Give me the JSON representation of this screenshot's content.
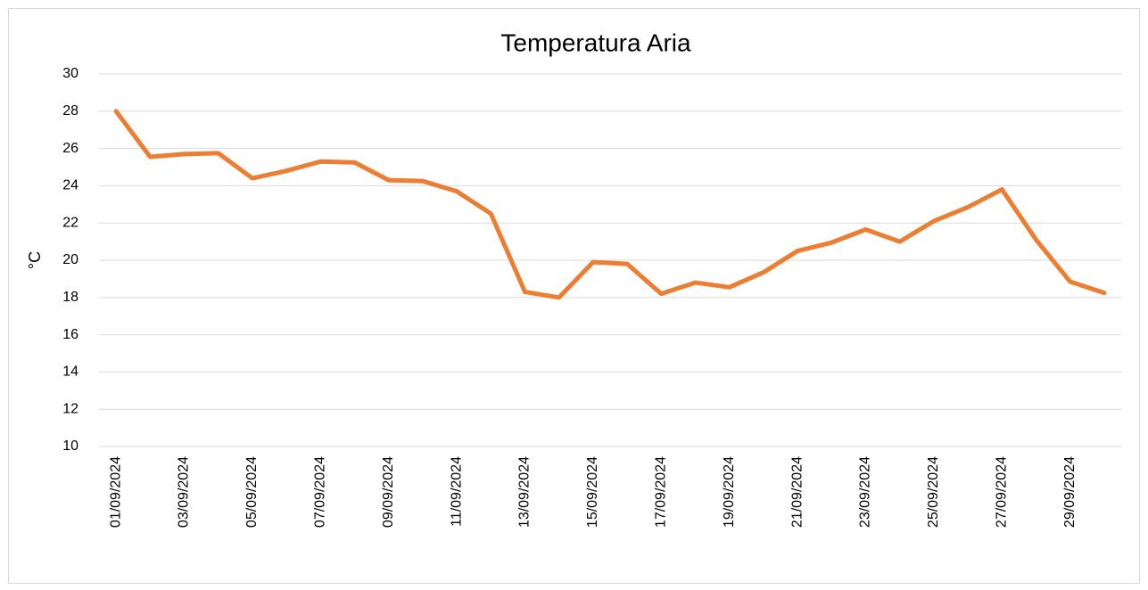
{
  "chart_data": {
    "type": "line",
    "title": "Temperatura Aria",
    "y_label": "°C",
    "categories": [
      "01/09/2024",
      null,
      "03/09/2024",
      null,
      "05/09/2024",
      null,
      "07/09/2024",
      null,
      "09/09/2024",
      null,
      "11/09/2024",
      null,
      "13/09/2024",
      null,
      "15/09/2024",
      null,
      "17/09/2024",
      null,
      "19/09/2024",
      null,
      "21/09/2024",
      null,
      "23/09/2024",
      null,
      "25/09/2024",
      null,
      "27/09/2024",
      null,
      "29/09/2024",
      null
    ],
    "series": [
      {
        "name": "Temperatura Aria",
        "color": "#ed7d31",
        "values": [
          28.0,
          25.55,
          25.7,
          25.75,
          24.4,
          24.8,
          25.3,
          25.25,
          24.3,
          24.25,
          23.7,
          22.5,
          18.3,
          18.0,
          19.9,
          19.8,
          18.2,
          18.8,
          18.55,
          19.35,
          20.5,
          20.95,
          21.65,
          21.0,
          22.1,
          22.85,
          23.8,
          21.1,
          18.85,
          18.25
        ]
      }
    ],
    "ylim": [
      10,
      30
    ],
    "yticks": [
      10,
      12,
      14,
      16,
      18,
      20,
      22,
      24,
      26,
      28,
      30
    ],
    "grid": true
  }
}
